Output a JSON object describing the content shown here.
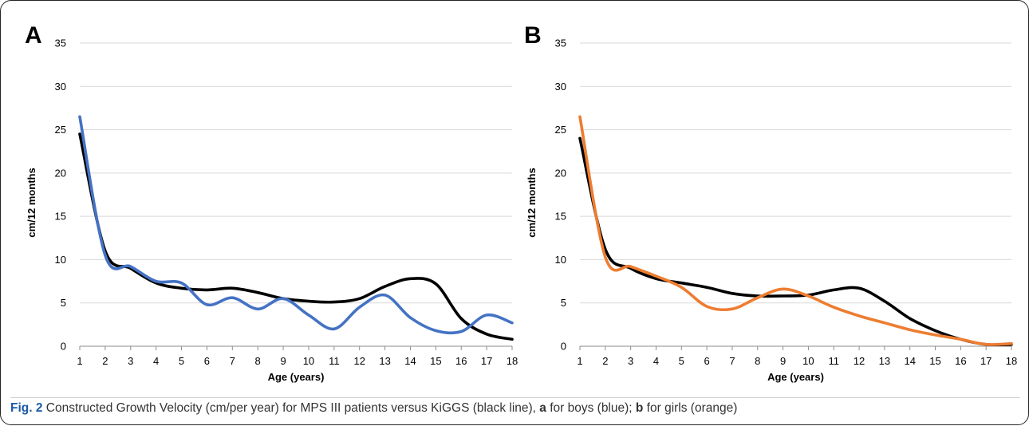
{
  "caption": {
    "label": "Fig. 2",
    "part1": " Constructed Growth Velocity (cm/per year) for MPS III patients versus KiGGS (black line), ",
    "a": "a",
    "part2": " for boys (blue); ",
    "b": "b",
    "part3": " for girls (orange)"
  },
  "chart_data": [
    {
      "type": "line",
      "panel_letter": "A",
      "xlabel": "Age (years)",
      "ylabel": "cm/12 months",
      "xlim": [
        1,
        18
      ],
      "ylim": [
        0,
        35
      ],
      "yticks": [
        0,
        5,
        10,
        15,
        20,
        25,
        30,
        35
      ],
      "x": [
        1,
        2,
        3,
        4,
        5,
        6,
        7,
        8,
        9,
        10,
        11,
        12,
        13,
        14,
        15,
        16,
        17,
        18
      ],
      "grid": "horizontal",
      "legend": "none",
      "series": [
        {
          "color": "#000000",
          "values": [
            24.5,
            11.0,
            9.0,
            7.3,
            6.7,
            6.5,
            6.7,
            6.2,
            5.5,
            5.2,
            5.1,
            5.5,
            6.9,
            7.8,
            7.2,
            3.2,
            1.4,
            0.8
          ]
        },
        {
          "color": "#4472C4",
          "values": [
            26.5,
            10.5,
            9.2,
            7.5,
            7.3,
            4.8,
            5.6,
            4.3,
            5.5,
            3.6,
            2.0,
            4.5,
            5.9,
            3.3,
            1.8,
            1.7,
            3.6,
            2.7
          ]
        }
      ]
    },
    {
      "type": "line",
      "panel_letter": "B",
      "xlabel": "Age (years)",
      "ylabel": "cm/12 months",
      "xlim": [
        1,
        18
      ],
      "ylim": [
        0,
        35
      ],
      "yticks": [
        0,
        5,
        10,
        15,
        20,
        25,
        30,
        35
      ],
      "x": [
        1,
        2,
        3,
        4,
        5,
        6,
        7,
        8,
        9,
        10,
        11,
        12,
        13,
        14,
        15,
        16,
        17,
        18
      ],
      "grid": "horizontal",
      "legend": "none",
      "series": [
        {
          "color": "#000000",
          "values": [
            24.0,
            11.2,
            9.0,
            7.8,
            7.3,
            6.8,
            6.1,
            5.8,
            5.8,
            5.9,
            6.5,
            6.7,
            5.2,
            3.2,
            1.8,
            0.8,
            0.2,
            0.2
          ]
        },
        {
          "color": "#ED7D31",
          "values": [
            26.5,
            10.3,
            9.2,
            8.1,
            6.8,
            4.6,
            4.3,
            5.6,
            6.6,
            5.8,
            4.5,
            3.5,
            2.7,
            1.9,
            1.3,
            0.8,
            0.2,
            0.3
          ]
        }
      ]
    }
  ]
}
